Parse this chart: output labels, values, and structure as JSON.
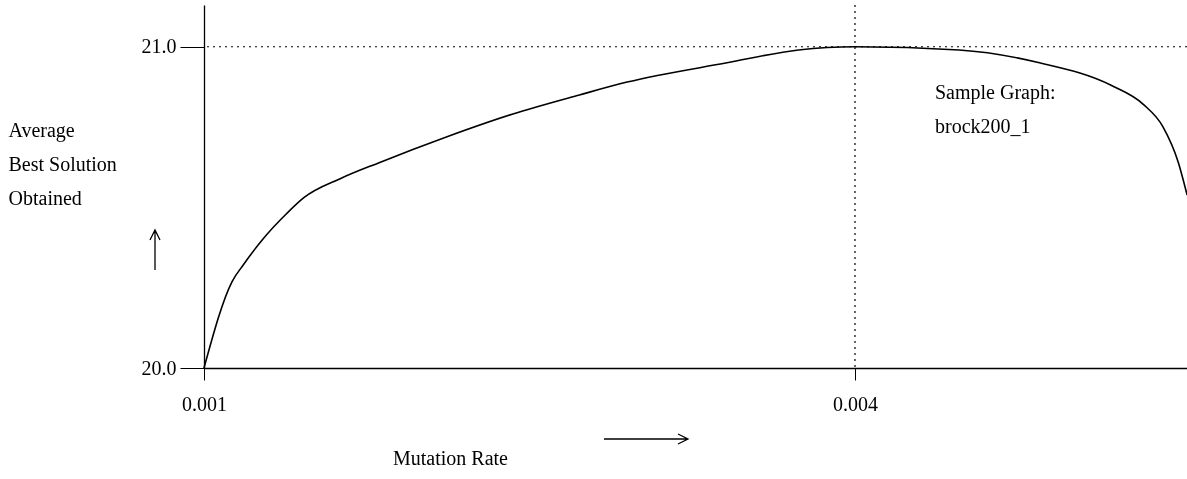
{
  "chart_data": {
    "type": "line",
    "xlabel": "Mutation Rate",
    "ylabel": "Average\nBest Solution\nObtained",
    "x": [
      0.001,
      0.00113,
      0.00118,
      0.00127,
      0.00138,
      0.00146,
      0.00163,
      0.00181,
      0.00212,
      0.00242,
      0.00273,
      0.00295,
      0.00341,
      0.00374,
      0.004,
      0.00448,
      0.00485,
      0.00518,
      0.00533,
      0.00542,
      0.00549,
      0.00553
    ],
    "series": [
      {
        "color": "#000000",
        "values": [
          20.0,
          20.27,
          20.32,
          20.4,
          20.48,
          20.53,
          20.59,
          20.64,
          20.72,
          20.79,
          20.85,
          20.89,
          20.95,
          20.99,
          21.0,
          20.99,
          20.95,
          20.88,
          20.82,
          20.75,
          20.64,
          20.54
        ]
      }
    ],
    "xlim": [
      0.001,
      0.00553
    ],
    "ylim": [
      20.0,
      21.13
    ],
    "xticks": [
      0.001,
      0.004
    ],
    "yticks": [
      {
        "value": 20,
        "label": "20.0"
      },
      {
        "value": 21,
        "label": "21.0"
      }
    ],
    "ref_lines": [
      {
        "axis": "y",
        "value": 21,
        "line_style": "dotted"
      },
      {
        "axis": "x",
        "value": 0.004,
        "line_style": "dotted"
      }
    ],
    "annotations": [
      "Sample Graph:\nbrock200_1"
    ],
    "grid": false,
    "marker": "none",
    "line_style": "solid"
  }
}
